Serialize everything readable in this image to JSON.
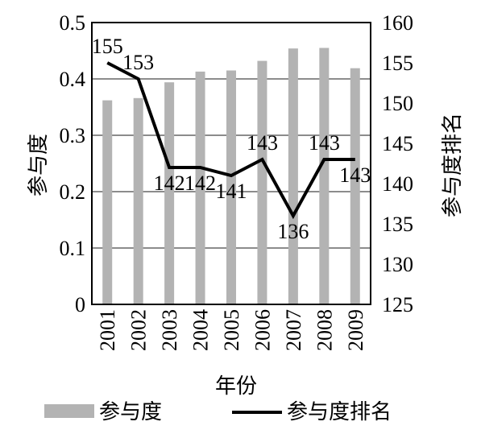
{
  "chart_data": {
    "type": "bar+line",
    "categories": [
      "2001",
      "2002",
      "2003",
      "2004",
      "2005",
      "2006",
      "2007",
      "2008",
      "2009"
    ],
    "xlabel": "年份",
    "ylabel_left": "参与度",
    "ylabel_right": "参与度排名",
    "ylim_left": [
      0,
      0.5
    ],
    "ylim_right": [
      125,
      160
    ],
    "yticks_left": [
      "0",
      "0.1",
      "0.2",
      "0.3",
      "0.4",
      "0.5"
    ],
    "yticks_right": [
      "125",
      "130",
      "135",
      "140",
      "145",
      "150",
      "155",
      "160"
    ],
    "grid": true,
    "legend_position": "bottom",
    "series": [
      {
        "name": "参与度",
        "type": "bar",
        "axis": "left",
        "color": "#b3b3b3",
        "values": [
          0.362,
          0.366,
          0.394,
          0.413,
          0.415,
          0.432,
          0.454,
          0.455,
          0.419
        ]
      },
      {
        "name": "参与度排名",
        "type": "line",
        "axis": "right",
        "color": "#000000",
        "values": [
          155,
          153,
          142,
          142,
          141,
          143,
          136,
          143,
          143
        ],
        "data_labels": [
          "155",
          "153",
          "142",
          "142",
          "141",
          "143",
          "136",
          "143",
          "143"
        ]
      }
    ]
  }
}
